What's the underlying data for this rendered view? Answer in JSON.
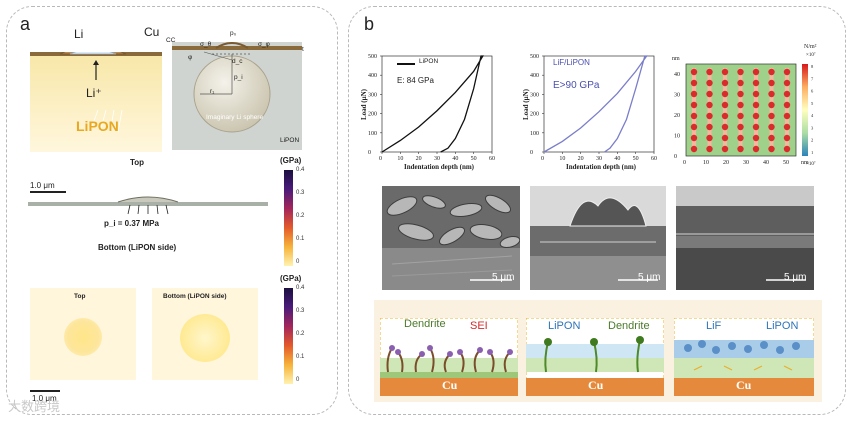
{
  "panel_a": {
    "letter": "a",
    "top_left": {
      "li": "Li",
      "cu": "Cu",
      "li_ion": "Li⁺",
      "electrolyte": "LiPON"
    },
    "top_right": {
      "cc": "CC",
      "t": "t",
      "p0": "p₀",
      "sigma_theta": "σ_θ",
      "sigma_phi": "σ_φ",
      "phi": "φ",
      "dc": "d_c",
      "pi": "p_i",
      "r1": "r₁",
      "sphere": "Imaginary Li sphere",
      "lipon": "LiPON"
    },
    "mid_title": "Top",
    "scale_1um": "1.0 μm",
    "pressure": "p_i = 0.37 MPa",
    "bottom_title": "Bottom (LiPON side)",
    "colorbar_unit": "(GPa)",
    "colorbar_ticks": [
      "0.4",
      "0.3",
      "0.2",
      "0.1",
      "0"
    ],
    "maps": {
      "top": "Top",
      "bottom": "Bottom (LiPON side)"
    },
    "scale_bottom": "1.0 μm"
  },
  "panel_b": {
    "letter": "b",
    "chart1": {
      "legend": "LiPON",
      "note": "E:  84 GPa"
    },
    "chart2": {
      "legend": "LiF/LiPON",
      "note": "E>90 GPa"
    },
    "heatmap": {
      "unit": "N/m²",
      "exp_top": "×10⁷",
      "exp_bottom": "×10⁷",
      "x_unit": "nm",
      "y_unit": "nm"
    },
    "sem_scale": [
      "5 μm",
      "5 μm",
      "5 μm"
    ],
    "schem1": {
      "dendrite": "Dendrite",
      "sei": "SEI",
      "cu": "Cu"
    },
    "schem2": {
      "lipon": "LiPON",
      "dendrite": "Dendrite",
      "cu": "Cu"
    },
    "schem3": {
      "lif": "LiF",
      "lipon": "LiPON",
      "cu": "Cu"
    }
  },
  "watermark": "大数跨境",
  "colors": {
    "curve1": "#111111",
    "curve2": "#7a7ec9",
    "lipon": "#f6e29a",
    "cu": "#e58a3c",
    "accent": "#e8b02a"
  },
  "chart_data": [
    {
      "type": "line",
      "ylabel": "Load (μN)",
      "xlabel": "Indentation depth (nm)",
      "x_ticks": [
        0,
        10,
        20,
        30,
        40,
        50,
        60
      ],
      "y_ticks": [
        0,
        100,
        200,
        300,
        400,
        500
      ],
      "xlim": [
        0,
        60
      ],
      "ylim": [
        0,
        500
      ],
      "series": [
        {
          "name": "LiPON",
          "x": [
            0,
            10,
            20,
            30,
            40,
            50,
            55,
            54,
            50,
            45,
            40,
            36,
            32
          ],
          "y": [
            0,
            60,
            130,
            215,
            310,
            420,
            500,
            500,
            330,
            170,
            70,
            20,
            0
          ]
        }
      ]
    },
    {
      "type": "line",
      "ylabel": "Load (μN)",
      "xlabel": "Indentation depth (nm)",
      "x_ticks": [
        0,
        10,
        20,
        30,
        40,
        50,
        60
      ],
      "y_ticks": [
        0,
        100,
        200,
        300,
        400,
        500
      ],
      "xlim": [
        0,
        60
      ],
      "ylim": [
        0,
        500
      ],
      "series": [
        {
          "name": "LiF/LiPON",
          "x": [
            0,
            10,
            20,
            30,
            40,
            50,
            56,
            55,
            50,
            45,
            40,
            36,
            33
          ],
          "y": [
            0,
            55,
            125,
            210,
            305,
            420,
            500,
            500,
            330,
            170,
            70,
            20,
            0
          ]
        }
      ]
    },
    {
      "type": "heatmap",
      "x_ticks": [
        0,
        10,
        20,
        30,
        40,
        50
      ],
      "y_ticks": [
        0,
        10,
        20,
        30,
        40
      ],
      "xlim": [
        0,
        55
      ],
      "ylim": [
        0,
        45
      ],
      "colorbar_ticks": [
        "8",
        "7",
        "6",
        "5",
        "4",
        "3",
        "2",
        "1"
      ]
    }
  ]
}
